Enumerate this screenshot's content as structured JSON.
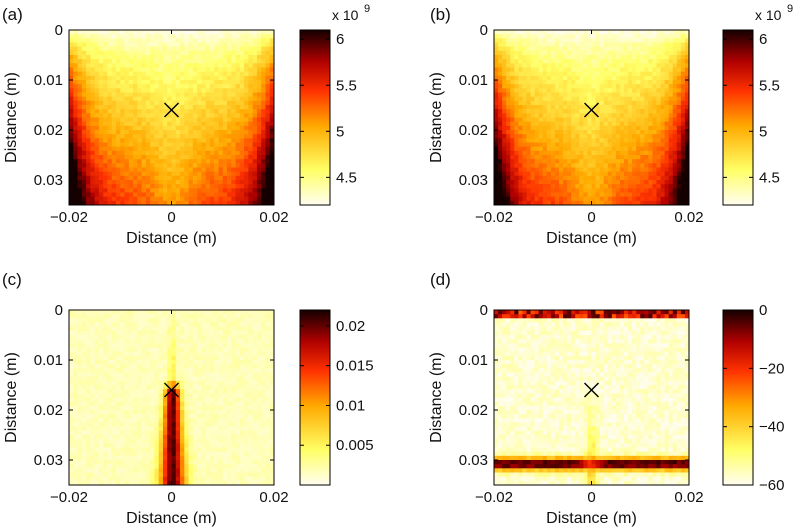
{
  "chart_data": [
    {
      "type": "heatmap",
      "panel_label": "(a)",
      "xlabel": "Distance (m)",
      "ylabel": "Distance (m)",
      "xlim": [
        -0.02,
        0.02
      ],
      "ylim": [
        0,
        0.035
      ],
      "x_ticks": [
        "−0.02",
        "0",
        "0.02"
      ],
      "y_ticks": [
        "0",
        "0.01",
        "0.02",
        "0.03"
      ],
      "colorbar": {
        "ticks": [
          "6",
          "5.5",
          "5",
          "4.5"
        ],
        "range": [
          4.2,
          6.1
        ],
        "multiplier": "x 10",
        "multiplier_exp": "9"
      },
      "marker": {
        "symbol": "x",
        "x": 0.0,
        "y": 0.016
      },
      "pattern": "walls"
    },
    {
      "type": "heatmap",
      "panel_label": "(b)",
      "xlabel": "Distance (m)",
      "ylabel": "Distance (m)",
      "xlim": [
        -0.02,
        0.02
      ],
      "ylim": [
        0,
        0.035
      ],
      "x_ticks": [
        "−0.02",
        "0",
        "0.02"
      ],
      "y_ticks": [
        "0",
        "0.01",
        "0.02",
        "0.03"
      ],
      "colorbar": {
        "ticks": [
          "6",
          "5.5",
          "5",
          "4.5"
        ],
        "range": [
          4.2,
          6.1
        ],
        "multiplier": "x 10",
        "multiplier_exp": "9"
      },
      "marker": {
        "symbol": "x",
        "x": 0.0,
        "y": 0.016
      },
      "pattern": "walls"
    },
    {
      "type": "heatmap",
      "panel_label": "(c)",
      "xlabel": "Distance (m)",
      "ylabel": "Distance (m)",
      "xlim": [
        -0.02,
        0.02
      ],
      "ylim": [
        0,
        0.035
      ],
      "x_ticks": [
        "−0.02",
        "0",
        "0.02"
      ],
      "y_ticks": [
        "0",
        "0.01",
        "0.02",
        "0.03"
      ],
      "colorbar": {
        "ticks": [
          "0.02",
          "0.015",
          "0.01",
          "0.005"
        ],
        "range": [
          0,
          0.022
        ]
      },
      "marker": {
        "symbol": "x",
        "x": 0.0,
        "y": 0.016
      },
      "pattern": "beam"
    },
    {
      "type": "heatmap",
      "panel_label": "(d)",
      "xlabel": "Distance (m)",
      "ylabel": "Distance (m)",
      "xlim": [
        -0.02,
        0.02
      ],
      "ylim": [
        0,
        0.035
      ],
      "x_ticks": [
        "−0.02",
        "0",
        "0.02"
      ],
      "y_ticks": [
        "0",
        "0.01",
        "0.02",
        "0.03"
      ],
      "colorbar": {
        "ticks": [
          "0",
          "−20",
          "−40",
          "−60"
        ],
        "range": [
          -60,
          0
        ]
      },
      "marker": {
        "symbol": "x",
        "x": 0.0,
        "y": 0.016
      },
      "pattern": "db"
    }
  ]
}
